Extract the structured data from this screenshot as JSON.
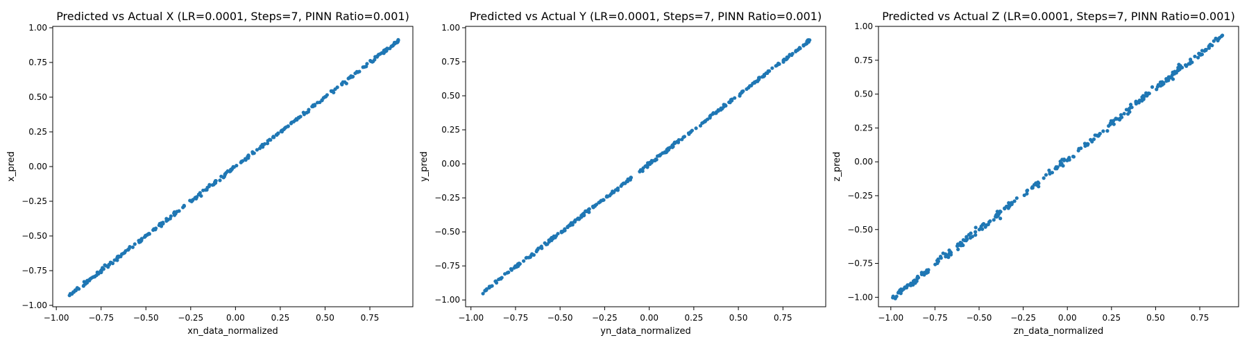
{
  "chart_data": [
    {
      "type": "scatter",
      "title": "Predicted vs Actual X (LR=0.0001, Steps=7, PINN Ratio=0.001)",
      "xlabel": "xn_data_normalized",
      "ylabel": "x_pred",
      "xlim": [
        -1.02,
        0.99
      ],
      "ylim": [
        -1.01,
        1.01
      ],
      "xticks": [
        "-1.00",
        "-0.75",
        "-0.50",
        "-0.25",
        "0.00",
        "0.25",
        "0.50",
        "0.75"
      ],
      "yticks": [
        "-1.00",
        "-0.75",
        "-0.50",
        "-0.25",
        "0.00",
        "0.25",
        "0.50",
        "0.75",
        "1.00"
      ],
      "color": "#1f77b4",
      "grid": false,
      "fit": {
        "x_min": -0.93,
        "x_max": 0.91,
        "slope": 1.0,
        "intercept": 0.0,
        "noise": 0.006,
        "n_points": 300
      }
    },
    {
      "type": "scatter",
      "title": "Predicted vs Actual Y (LR=0.0001, Steps=7, PINN Ratio=0.001)",
      "xlabel": "yn_data_normalized",
      "ylabel": "y_pred",
      "xlim": [
        -1.03,
        0.99
      ],
      "ylim": [
        -1.05,
        1.01
      ],
      "xticks": [
        "-1.00",
        "-0.75",
        "-0.50",
        "-0.25",
        "0.00",
        "0.25",
        "0.50",
        "0.75"
      ],
      "yticks": [
        "-1.00",
        "-0.75",
        "-0.50",
        "-0.25",
        "0.00",
        "0.25",
        "0.50",
        "0.75",
        "1.00"
      ],
      "color": "#1f77b4",
      "grid": false,
      "fit": {
        "x_min": -0.94,
        "x_max": 0.9,
        "slope": 1.01,
        "intercept": 0.0,
        "noise": 0.006,
        "n_points": 300
      }
    },
    {
      "type": "scatter",
      "title": "Predicted vs Actual Z (LR=0.0001, Steps=7, PINN Ratio=0.001)",
      "xlabel": "zn_data_normalized",
      "ylabel": "z_pred",
      "xlim": [
        -1.07,
        0.97
      ],
      "ylim": [
        -1.07,
        1.0
      ],
      "xticks": [
        "-1.00",
        "-0.75",
        "-0.50",
        "-0.25",
        "0.00",
        "0.25",
        "0.50",
        "0.75"
      ],
      "yticks": [
        "-1.00",
        "-0.75",
        "-0.50",
        "-0.25",
        "0.00",
        "0.25",
        "0.50",
        "0.75",
        "1.00"
      ],
      "color": "#1f77b4",
      "grid": false,
      "fit": {
        "x_min": -0.99,
        "x_max": 0.88,
        "slope": 1.04,
        "intercept": 0.02,
        "noise": 0.012,
        "n_points": 300
      }
    }
  ]
}
